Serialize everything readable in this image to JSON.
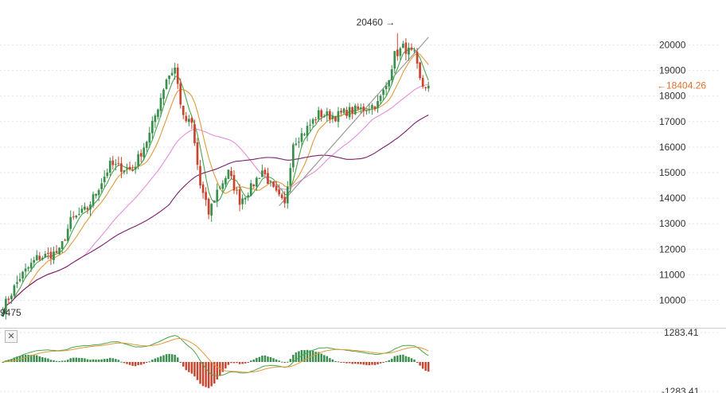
{
  "colors": {
    "up": "#3a8f4f",
    "down": "#c8462f",
    "ma_green": "#4aa64a",
    "ma_orange": "#e09a3a",
    "ma_pink": "#e58fd8",
    "ma_purple": "#7a1f6e",
    "trendline": "#9a9a9a",
    "last_price": "#e0712c",
    "grid": "#e6e6e6",
    "macd_line": "#4aa64a",
    "signal_line": "#e09a3a"
  },
  "panel_controls": {
    "close_icon": "close-icon",
    "close_label": "✕"
  },
  "chart_data": [
    {
      "type": "candlestick",
      "title": "",
      "y_axis_position": "right",
      "ylim": [
        9300,
        20950
      ],
      "y_ticks": [
        10000,
        11000,
        12000,
        13000,
        14000,
        15000,
        16000,
        17000,
        18000,
        19000,
        20000
      ],
      "y_tick_labels": [
        "10000",
        "11000",
        "12000",
        "13000",
        "14000",
        "15000",
        "16000",
        "17000",
        "18000",
        "19000",
        "20000"
      ],
      "high_annotation": {
        "label": "20460 →",
        "value": 20460,
        "bar": 140
      },
      "low_annotation": {
        "label": "9475",
        "value": 9475,
        "bar": 0
      },
      "last_price": {
        "label": "←18404.26",
        "value": 18404.26
      },
      "anchors": [
        [
          0,
          9700
        ],
        [
          6,
          10900
        ],
        [
          12,
          11650
        ],
        [
          20,
          11900
        ],
        [
          24,
          13100
        ],
        [
          30,
          13600
        ],
        [
          38,
          15300
        ],
        [
          46,
          15100
        ],
        [
          52,
          16500
        ],
        [
          58,
          18700
        ],
        [
          61,
          19100
        ],
        [
          64,
          17100
        ],
        [
          67,
          16900
        ],
        [
          70,
          14500
        ],
        [
          73,
          13400
        ],
        [
          76,
          14300
        ],
        [
          80,
          15000
        ],
        [
          84,
          13900
        ],
        [
          88,
          14400
        ],
        [
          92,
          15100
        ],
        [
          96,
          14300
        ],
        [
          100,
          13700
        ],
        [
          103,
          16200
        ],
        [
          107,
          16600
        ],
        [
          112,
          17300
        ],
        [
          118,
          17200
        ],
        [
          122,
          17400
        ],
        [
          128,
          17500
        ],
        [
          133,
          17700
        ],
        [
          136,
          18400
        ],
        [
          139,
          19600
        ],
        [
          142,
          19900
        ],
        [
          146,
          19600
        ],
        [
          148,
          18600
        ],
        [
          149,
          18400
        ]
      ],
      "series": [
        {
          "name": "",
          "kind": "ma",
          "period": 5,
          "color_key": "ma_green"
        },
        {
          "name": "",
          "kind": "ma",
          "period": 10,
          "color_key": "ma_orange"
        },
        {
          "name": "",
          "kind": "ma",
          "period": 30,
          "color_key": "ma_pink"
        },
        {
          "name": "",
          "kind": "ma",
          "period": 60,
          "color_key": "ma_purple"
        }
      ],
      "trendline": {
        "from": {
          "bar": 98,
          "value": 13700
        },
        "to": {
          "bar": 151,
          "value": 20300
        }
      }
    },
    {
      "type": "bar",
      "title": "",
      "indicator": "macd",
      "ylim": [
        -1283.41,
        1283.41
      ],
      "y_ticks": [
        1283.41,
        -1283.41
      ],
      "y_tick_labels": [
        "1283.41",
        "-1283.41"
      ],
      "series": [
        {
          "name": "",
          "kind": "line",
          "color_key": "macd_line"
        },
        {
          "name": "",
          "kind": "line",
          "color_key": "signal_line"
        },
        {
          "name": "",
          "kind": "histogram"
        }
      ]
    }
  ]
}
